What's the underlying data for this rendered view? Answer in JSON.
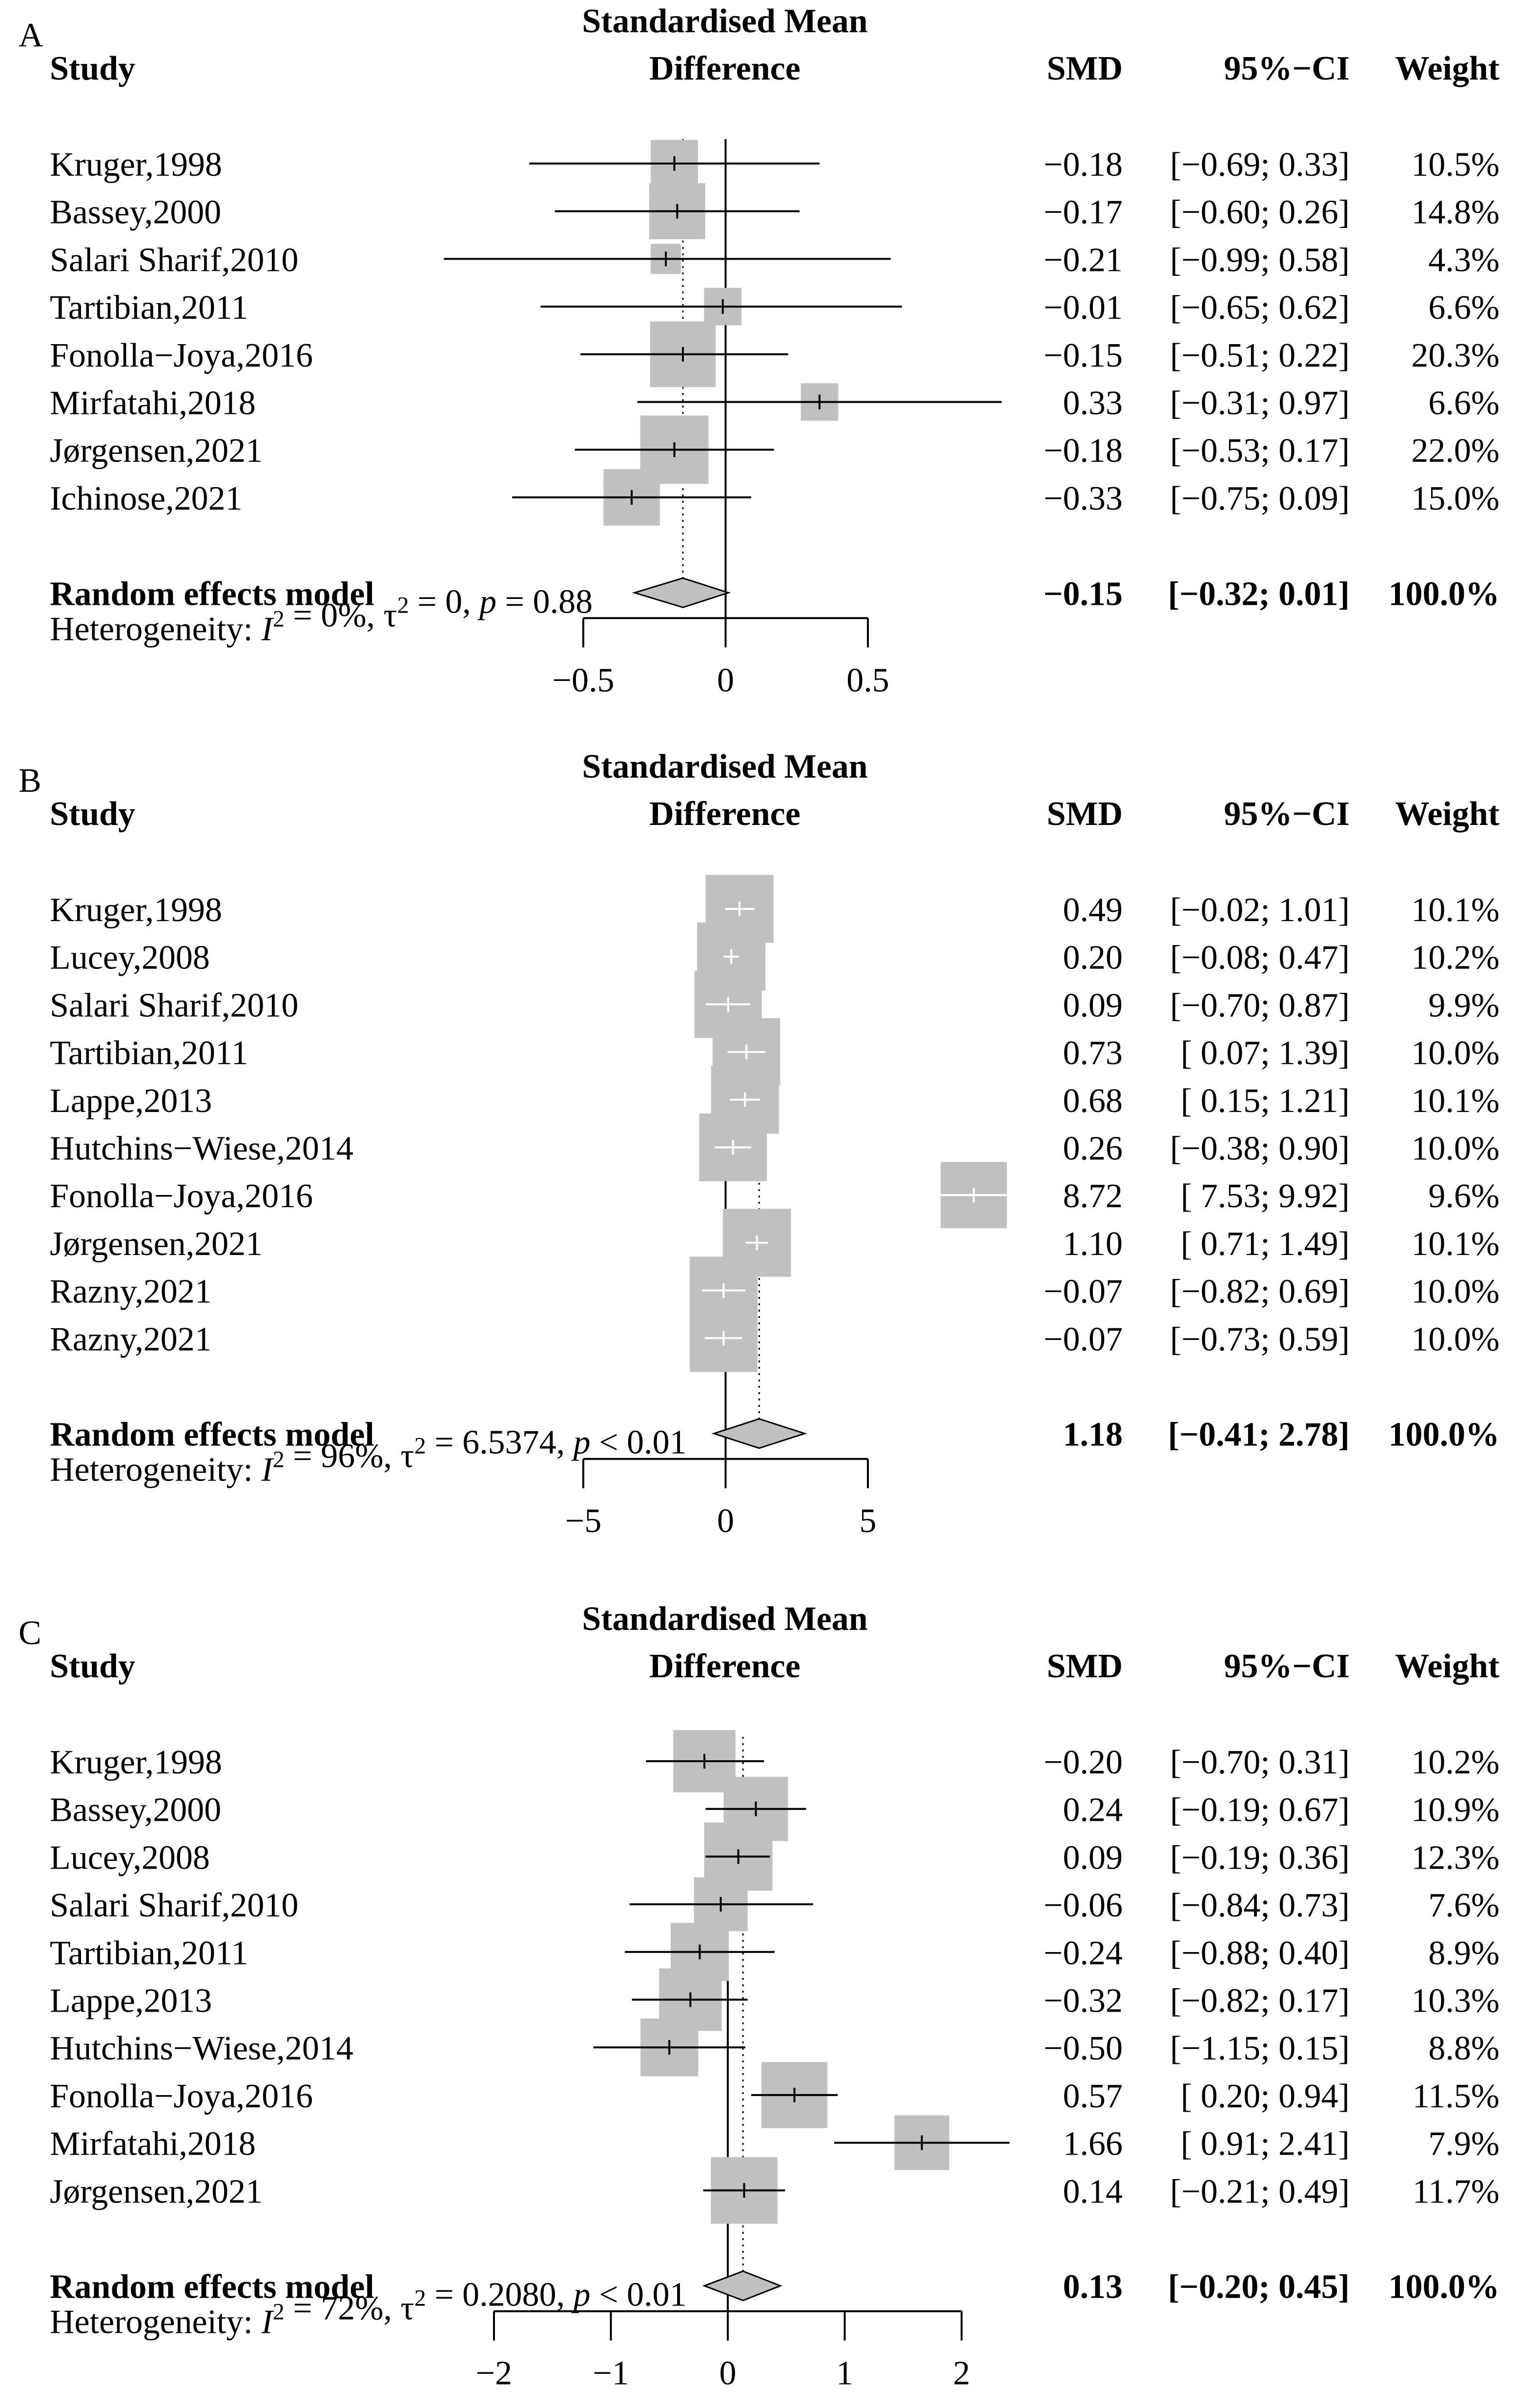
{
  "chart_data": [
    {
      "type": "forest",
      "panel_label": "A",
      "effect_label": [
        "Standardised Mean",
        "Difference"
      ],
      "columns": {
        "study": "Study",
        "smd": "SMD",
        "ci": "95%−CI",
        "weight": "Weight"
      },
      "studies": [
        {
          "name": "Kruger,1998",
          "smd": -0.18,
          "lower": -0.69,
          "upper": 0.33,
          "weight": 10.5,
          "smd_text": "−0.18",
          "ci_text": "[−0.69; 0.33]",
          "weight_text": "10.5%"
        },
        {
          "name": "Bassey,2000",
          "smd": -0.17,
          "lower": -0.6,
          "upper": 0.26,
          "weight": 14.8,
          "smd_text": "−0.17",
          "ci_text": "[−0.60; 0.26]",
          "weight_text": "14.8%"
        },
        {
          "name": "Salari Sharif,2010",
          "smd": -0.21,
          "lower": -0.99,
          "upper": 0.58,
          "weight": 4.3,
          "smd_text": "−0.21",
          "ci_text": "[−0.99; 0.58]",
          "weight_text": "4.3%"
        },
        {
          "name": "Tartibian,2011",
          "smd": -0.01,
          "lower": -0.65,
          "upper": 0.62,
          "weight": 6.6,
          "smd_text": "−0.01",
          "ci_text": "[−0.65; 0.62]",
          "weight_text": "6.6%"
        },
        {
          "name": "Fonolla−Joya,2016",
          "smd": -0.15,
          "lower": -0.51,
          "upper": 0.22,
          "weight": 20.3,
          "smd_text": "−0.15",
          "ci_text": "[−0.51; 0.22]",
          "weight_text": "20.3%"
        },
        {
          "name": "Mirfatahi,2018",
          "smd": 0.33,
          "lower": -0.31,
          "upper": 0.97,
          "weight": 6.6,
          "smd_text": "0.33",
          "ci_text": "[−0.31; 0.97]",
          "weight_text": "6.6%"
        },
        {
          "name": "Jørgensen,2021",
          "smd": -0.18,
          "lower": -0.53,
          "upper": 0.17,
          "weight": 22.0,
          "smd_text": "−0.18",
          "ci_text": "[−0.53; 0.17]",
          "weight_text": "22.0%"
        },
        {
          "name": "Ichinose,2021",
          "smd": -0.33,
          "lower": -0.75,
          "upper": 0.09,
          "weight": 15.0,
          "smd_text": "−0.33",
          "ci_text": "[−0.75; 0.09]",
          "weight_text": "15.0%"
        }
      ],
      "pooled": {
        "name": "Random effects model",
        "smd": -0.15,
        "lower": -0.32,
        "upper": 0.01,
        "smd_text": "−0.15",
        "ci_text": "[−0.32; 0.01]",
        "weight_text": "100.0%"
      },
      "heterogeneity": {
        "prefix": "Heterogeneity: ",
        "i2_symbol": "I",
        "i2_value": " = 0%, ",
        "tau2_symbol": "τ",
        "tau2_value": " = 0, ",
        "p_symbol": "p",
        "p_value": " = 0.88"
      },
      "axis": {
        "min": -0.5,
        "max": 0.5,
        "ticks": [
          -0.5,
          0,
          0.5
        ],
        "tick_labels": [
          "−0.5",
          "0",
          "0.5"
        ]
      },
      "whisker_color": "#000000"
    },
    {
      "type": "forest",
      "panel_label": "B",
      "effect_label": [
        "Standardised Mean",
        "Difference"
      ],
      "columns": {
        "study": "Study",
        "smd": "SMD",
        "ci": "95%−CI",
        "weight": "Weight"
      },
      "studies": [
        {
          "name": "Kruger,1998",
          "smd": 0.49,
          "lower": -0.02,
          "upper": 1.01,
          "weight": 10.1,
          "smd_text": "0.49",
          "ci_text": "[−0.02; 1.01]",
          "weight_text": "10.1%"
        },
        {
          "name": "Lucey,2008",
          "smd": 0.2,
          "lower": -0.08,
          "upper": 0.47,
          "weight": 10.2,
          "smd_text": "0.20",
          "ci_text": "[−0.08; 0.47]",
          "weight_text": "10.2%"
        },
        {
          "name": "Salari Sharif,2010",
          "smd": 0.09,
          "lower": -0.7,
          "upper": 0.87,
          "weight": 9.9,
          "smd_text": "0.09",
          "ci_text": "[−0.70; 0.87]",
          "weight_text": "9.9%"
        },
        {
          "name": "Tartibian,2011",
          "smd": 0.73,
          "lower": 0.07,
          "upper": 1.39,
          "weight": 10.0,
          "smd_text": "0.73",
          "ci_text": "[ 0.07; 1.39]",
          "weight_text": "10.0%"
        },
        {
          "name": "Lappe,2013",
          "smd": 0.68,
          "lower": 0.15,
          "upper": 1.21,
          "weight": 10.1,
          "smd_text": "0.68",
          "ci_text": "[ 0.15; 1.21]",
          "weight_text": "10.1%"
        },
        {
          "name": "Hutchins−Wiese,2014",
          "smd": 0.26,
          "lower": -0.38,
          "upper": 0.9,
          "weight": 10.0,
          "smd_text": "0.26",
          "ci_text": "[−0.38; 0.90]",
          "weight_text": "10.0%"
        },
        {
          "name": "Fonolla−Joya,2016",
          "smd": 8.72,
          "lower": 7.53,
          "upper": 9.92,
          "weight": 9.6,
          "smd_text": "8.72",
          "ci_text": "[ 7.53; 9.92]",
          "weight_text": "9.6%"
        },
        {
          "name": "Jørgensen,2021",
          "smd": 1.1,
          "lower": 0.71,
          "upper": 1.49,
          "weight": 10.1,
          "smd_text": "1.10",
          "ci_text": "[ 0.71; 1.49]",
          "weight_text": "10.1%"
        },
        {
          "name": "Razny,2021",
          "smd": -0.07,
          "lower": -0.82,
          "upper": 0.69,
          "weight": 10.0,
          "smd_text": "−0.07",
          "ci_text": "[−0.82; 0.69]",
          "weight_text": "10.0%"
        },
        {
          "name": "Razny,2021",
          "smd": -0.07,
          "lower": -0.73,
          "upper": 0.59,
          "weight": 10.0,
          "smd_text": "−0.07",
          "ci_text": "[−0.73; 0.59]",
          "weight_text": "10.0%"
        }
      ],
      "pooled": {
        "name": "Random effects model",
        "smd": 1.18,
        "lower": -0.41,
        "upper": 2.78,
        "smd_text": "1.18",
        "ci_text": "[−0.41; 2.78]",
        "weight_text": "100.0%"
      },
      "heterogeneity": {
        "prefix": "Heterogeneity: ",
        "i2_symbol": "I",
        "i2_value": " = 96%, ",
        "tau2_symbol": "τ",
        "tau2_value": " = 6.5374, ",
        "p_symbol": "p",
        "p_value": " < 0.01"
      },
      "axis": {
        "min": -5,
        "max": 5,
        "ticks": [
          -5,
          0,
          5
        ],
        "tick_labels": [
          "−5",
          "0",
          "5"
        ]
      },
      "whisker_color": "#ffffff"
    },
    {
      "type": "forest",
      "panel_label": "C",
      "effect_label": [
        "Standardised Mean",
        "Difference"
      ],
      "columns": {
        "study": "Study",
        "smd": "SMD",
        "ci": "95%−CI",
        "weight": "Weight"
      },
      "studies": [
        {
          "name": "Kruger,1998",
          "smd": -0.2,
          "lower": -0.7,
          "upper": 0.31,
          "weight": 10.2,
          "smd_text": "−0.20",
          "ci_text": "[−0.70; 0.31]",
          "weight_text": "10.2%"
        },
        {
          "name": "Bassey,2000",
          "smd": 0.24,
          "lower": -0.19,
          "upper": 0.67,
          "weight": 10.9,
          "smd_text": "0.24",
          "ci_text": "[−0.19; 0.67]",
          "weight_text": "10.9%"
        },
        {
          "name": "Lucey,2008",
          "smd": 0.09,
          "lower": -0.19,
          "upper": 0.36,
          "weight": 12.3,
          "smd_text": "0.09",
          "ci_text": "[−0.19; 0.36]",
          "weight_text": "12.3%"
        },
        {
          "name": "Salari Sharif,2010",
          "smd": -0.06,
          "lower": -0.84,
          "upper": 0.73,
          "weight": 7.6,
          "smd_text": "−0.06",
          "ci_text": "[−0.84; 0.73]",
          "weight_text": "7.6%"
        },
        {
          "name": "Tartibian,2011",
          "smd": -0.24,
          "lower": -0.88,
          "upper": 0.4,
          "weight": 8.9,
          "smd_text": "−0.24",
          "ci_text": "[−0.88; 0.40]",
          "weight_text": "8.9%"
        },
        {
          "name": "Lappe,2013",
          "smd": -0.32,
          "lower": -0.82,
          "upper": 0.17,
          "weight": 10.3,
          "smd_text": "−0.32",
          "ci_text": "[−0.82; 0.17]",
          "weight_text": "10.3%"
        },
        {
          "name": "Hutchins−Wiese,2014",
          "smd": -0.5,
          "lower": -1.15,
          "upper": 0.15,
          "weight": 8.8,
          "smd_text": "−0.50",
          "ci_text": "[−1.15; 0.15]",
          "weight_text": "8.8%"
        },
        {
          "name": "Fonolla−Joya,2016",
          "smd": 0.57,
          "lower": 0.2,
          "upper": 0.94,
          "weight": 11.5,
          "smd_text": "0.57",
          "ci_text": "[ 0.20; 0.94]",
          "weight_text": "11.5%"
        },
        {
          "name": "Mirfatahi,2018",
          "smd": 1.66,
          "lower": 0.91,
          "upper": 2.41,
          "weight": 7.9,
          "smd_text": "1.66",
          "ci_text": "[ 0.91; 2.41]",
          "weight_text": "7.9%"
        },
        {
          "name": "Jørgensen,2021",
          "smd": 0.14,
          "lower": -0.21,
          "upper": 0.49,
          "weight": 11.7,
          "smd_text": "0.14",
          "ci_text": "[−0.21; 0.49]",
          "weight_text": "11.7%"
        }
      ],
      "pooled": {
        "name": "Random effects model",
        "smd": 0.13,
        "lower": -0.2,
        "upper": 0.45,
        "smd_text": "0.13",
        "ci_text": "[−0.20; 0.45]",
        "weight_text": "100.0%"
      },
      "heterogeneity": {
        "prefix": "Heterogeneity: ",
        "i2_symbol": "I",
        "i2_value": " = 72%, ",
        "tau2_symbol": "τ",
        "tau2_value": " = 0.2080, ",
        "p_symbol": "p",
        "p_value": " < 0.01"
      },
      "axis": {
        "min": -2,
        "max": 2,
        "ticks": [
          -2,
          -1,
          0,
          1,
          2
        ],
        "tick_labels": [
          "−2",
          "−1",
          "0",
          "1",
          "2"
        ]
      },
      "whisker_color": "#000000"
    }
  ],
  "colors": {
    "square": "#c0c0c0",
    "diamond": "#c0c0c0",
    "line": "#000000"
  }
}
